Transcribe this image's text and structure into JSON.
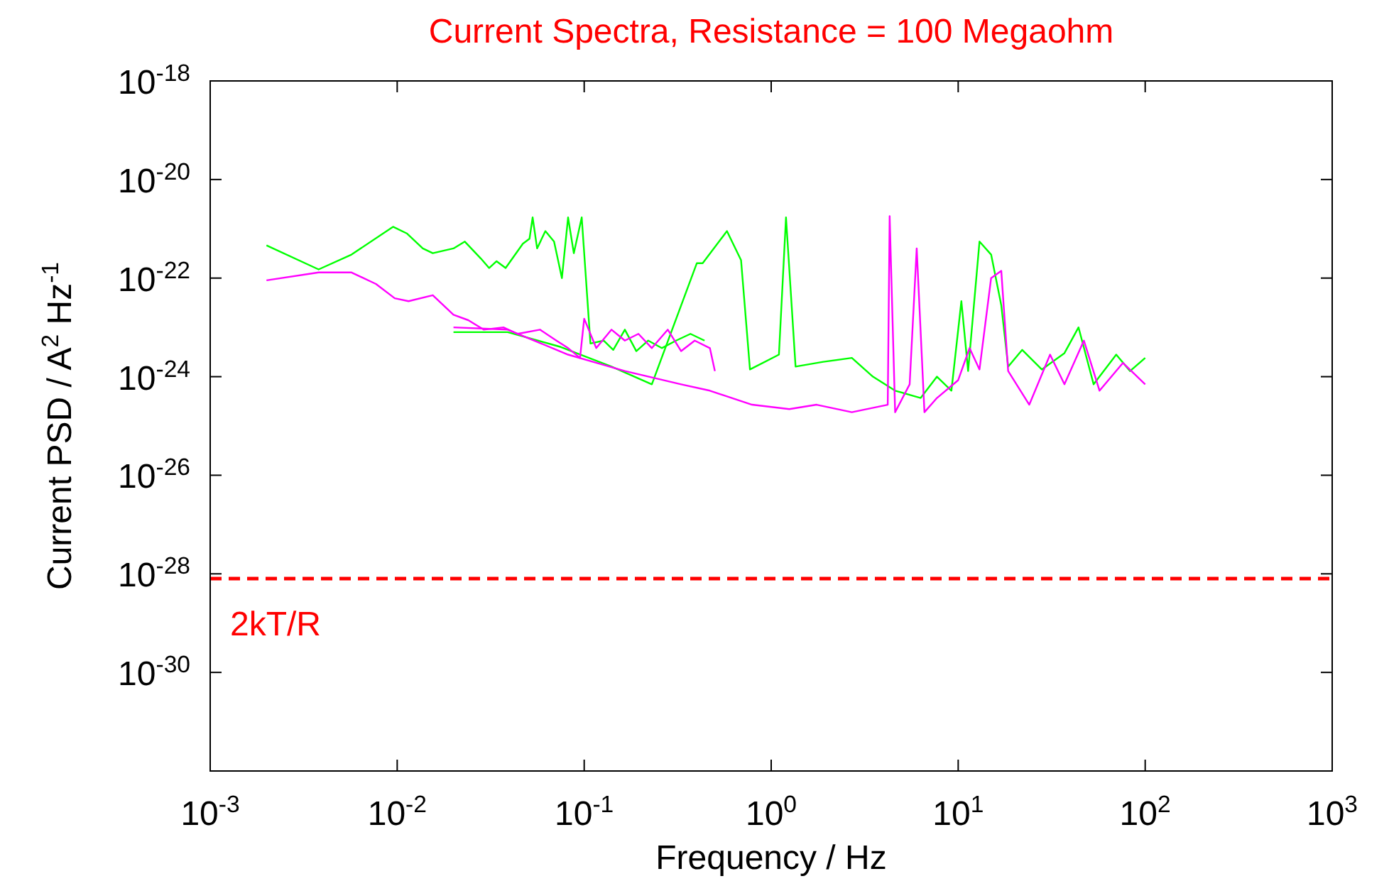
{
  "chart_data": {
    "type": "line",
    "title": "Current Spectra, Resistance = 100 Megaohm",
    "xlabel": "Frequency / Hz",
    "ylabel": "Current PSD / A$^{2}$ Hz$^{-1}$",
    "log": "xy",
    "grid": false,
    "line_style": "solid",
    "xlim": [
      0.001,
      1000
    ],
    "xticks": [
      {
        "value": 0.001,
        "label": "10$^{-3}$"
      },
      {
        "value": 0.01,
        "label": "10$^{-2}$"
      },
      {
        "value": 0.1,
        "label": "10$^{-1}$"
      },
      {
        "value": 1,
        "label": "10$^{0}$"
      },
      {
        "value": 10,
        "label": "10$^{1}$"
      },
      {
        "value": 100,
        "label": "10$^{2}$"
      },
      {
        "value": 1000,
        "label": "10$^{3}$"
      }
    ],
    "ylim": [
      1e-32,
      1e-18
    ],
    "yticks": [
      {
        "value": 1e-30,
        "label": "10$^{-30}$"
      },
      {
        "value": 1e-28,
        "label": "10$^{-28}$"
      },
      {
        "value": 1e-26,
        "label": "10$^{-26}$"
      },
      {
        "value": 1e-24,
        "label": "10$^{-24}$"
      },
      {
        "value": 1e-22,
        "label": "10$^{-22}$"
      },
      {
        "value": 1e-20,
        "label": "10$^{-20}$"
      },
      {
        "value": 1e-18,
        "label": "10$^{-18}$"
      }
    ],
    "ref_lines": [
      {
        "axis": "y",
        "value": 8e-29,
        "label": "2kT/R",
        "color": "#ff0000",
        "line_style": "dashed"
      }
    ],
    "series": [
      {
        "color": "#00ff00",
        "x": [
          0.002,
          0.0038,
          0.0057,
          0.0095,
          0.0113,
          0.0137,
          0.0155,
          0.02,
          0.023,
          0.028,
          0.031,
          0.034,
          0.038,
          0.047,
          0.051,
          0.053,
          0.056,
          0.062,
          0.069,
          0.076,
          0.082,
          0.088,
          0.097,
          0.108,
          0.127,
          0.143,
          0.165,
          0.19,
          0.22,
          0.26,
          0.31,
          0.37,
          0.44
        ],
        "values": [
          4.6e-22,
          1.5e-22,
          3e-22,
          1.1e-21,
          8e-22,
          4e-22,
          3.2e-22,
          4e-22,
          5.5e-22,
          2.5e-22,
          1.6e-22,
          2.2e-22,
          1.6e-22,
          5e-22,
          6.3e-22,
          1.7e-21,
          4e-22,
          9e-22,
          5.5e-22,
          1e-22,
          1.7e-21,
          3.2e-22,
          1.7e-21,
          4.7e-24,
          5.4e-24,
          3.5e-24,
          9e-24,
          3.3e-24,
          5.4e-24,
          3.8e-24,
          5.4e-24,
          7.4e-24,
          5.4e-24
        ]
      },
      {
        "color": "#00ff00",
        "x": [
          0.02,
          0.039,
          0.075,
          0.14,
          0.23,
          0.4,
          0.43,
          0.58,
          0.69,
          0.77,
          1.1,
          1.2,
          1.35,
          1.9,
          2.7,
          3.5,
          4.6,
          6.3,
          7.7,
          9.2,
          10.4,
          11.3,
          13,
          15,
          17,
          18.5,
          22,
          28,
          37,
          44,
          53,
          70,
          83,
          100
        ],
        "values": [
          8e-24,
          8e-24,
          4e-24,
          1.6e-24,
          7e-25,
          2e-22,
          2e-22,
          9e-22,
          2.3e-22,
          1.4e-24,
          2.8e-24,
          1.7e-21,
          1.6e-24,
          2e-24,
          2.4e-24,
          1e-24,
          5.2e-25,
          3.7e-25,
          1e-24,
          5.2e-25,
          3.4e-23,
          1.3e-24,
          5.5e-22,
          3e-22,
          2.8e-23,
          1.6e-24,
          3.5e-24,
          1.4e-24,
          3e-24,
          1e-23,
          7e-25,
          2.8e-24,
          1.3e-24,
          2.4e-24
        ]
      },
      {
        "color": "#ff00ff",
        "x": [
          0.002,
          0.0038,
          0.0057,
          0.0077,
          0.0097,
          0.0115,
          0.0155,
          0.02,
          0.024,
          0.029,
          0.037,
          0.044,
          0.058,
          0.071,
          0.082,
          0.095,
          0.1,
          0.116,
          0.14,
          0.165,
          0.195,
          0.23,
          0.28,
          0.33,
          0.39,
          0.47,
          0.5
        ],
        "values": [
          9e-23,
          1.3e-22,
          1.3e-22,
          7.6e-23,
          3.9e-23,
          3.4e-23,
          4.5e-23,
          1.8e-23,
          1.4e-23,
          9e-24,
          1e-23,
          7.4e-24,
          9e-24,
          5.4e-24,
          3.8e-24,
          2.4e-24,
          1.5e-23,
          3.8e-24,
          9e-24,
          5.4e-24,
          7.4e-24,
          3.8e-24,
          9e-24,
          3.3e-24,
          5.4e-24,
          3.8e-24,
          1.3e-24
        ]
      },
      {
        "color": "#ff00ff",
        "x": [
          0.02,
          0.039,
          0.082,
          0.165,
          0.33,
          0.47,
          0.79,
          1.25,
          1.75,
          2.7,
          4.2,
          4.3,
          4.6,
          5.5,
          6,
          6.6,
          7.7,
          10,
          11.5,
          13,
          15,
          17,
          18.5,
          24,
          31,
          37,
          47,
          57,
          76,
          100
        ],
        "values": [
          1e-23,
          9e-24,
          2.8e-24,
          1.3e-24,
          7e-25,
          5.2e-25,
          2.7e-25,
          2.2e-25,
          2.7e-25,
          1.9e-25,
          2.7e-25,
          1.8e-21,
          1.9e-25,
          7e-25,
          4e-22,
          1.9e-25,
          3.7e-25,
          8.5e-25,
          3.8e-24,
          1.4e-24,
          1e-22,
          1.4e-22,
          1.3e-24,
          2.7e-25,
          2.8e-24,
          7e-25,
          5.4e-24,
          5.2e-25,
          1.9e-24,
          7e-25
        ]
      }
    ]
  }
}
